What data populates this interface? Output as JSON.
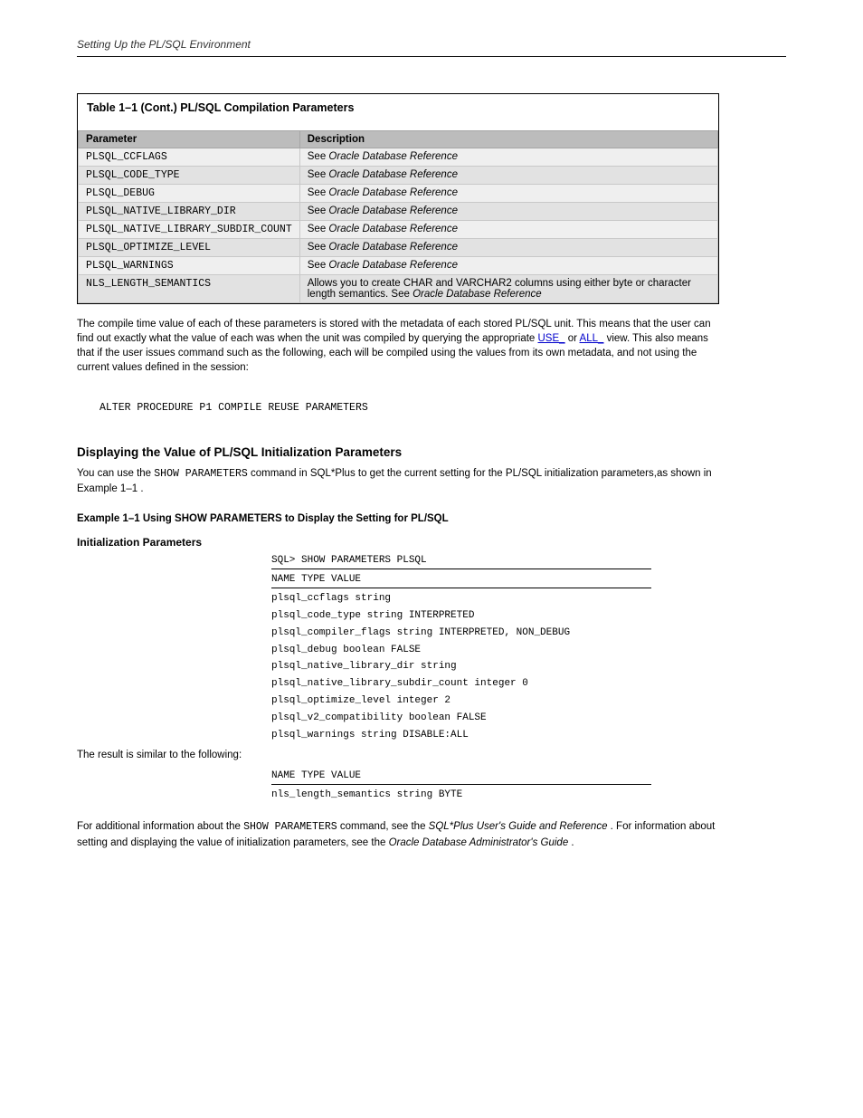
{
  "header": {
    "text": "Setting Up the PL/SQL Environment"
  },
  "table": {
    "title": "Table 1–1 (Cont.) PL/SQL Compilation Parameters",
    "header": {
      "c1": "Parameter",
      "c2": "Description"
    },
    "colors": {
      "header_bg": "#bcbcbc",
      "row_light": "#efefef",
      "row_dark": "#e2e2e2",
      "border": "#000000"
    },
    "col_widths": {
      "name": 213
    },
    "rows": [
      {
        "name": "PLSQL_CCFLAGS",
        "ref": "Oracle Database Reference",
        "shade": "lighter"
      },
      {
        "name": "PLSQL_CODE_TYPE",
        "ref": "Oracle Database Reference",
        "shade": "darker"
      },
      {
        "name": "PLSQL_DEBUG",
        "ref": "Oracle Database Reference",
        "shade": "lighter"
      },
      {
        "name": "PLSQL_NATIVE_LIBRARY_DIR",
        "ref": "Oracle Database Reference",
        "shade": "darker"
      },
      {
        "name": "PLSQL_NATIVE_LIBRARY_SUBDIR_COUNT",
        "ref": "Oracle Database Reference",
        "shade": "lighter",
        "section_break": true
      },
      {
        "name": "PLSQL_OPTIMIZE_LEVEL",
        "ref": "Oracle Database Reference",
        "shade": "darker"
      },
      {
        "name": "PLSQL_WARNINGS",
        "ref": "Oracle Database Reference",
        "shade": "lighter"
      },
      {
        "name": "NLS_LENGTH_SEMANTICS",
        "desc": "Allows you to create CHAR and VARCHAR2 columns using either byte or character length semantics. See ",
        "ref": "Oracle Database Reference",
        "shade": "darker"
      }
    ]
  },
  "note": {
    "prefix": "The compile time value of each of these parameters is stored with the metadata of each stored PL/SQL unit. This means that the user can find out exactly what the value of each was when the unit was compiled by querying the appropriate ",
    "link1_text": "USE_",
    "mid1": " or ",
    "link2_text": "ALL_",
    "suffix": " view. This also means that if the user issues command such as the following, each will be compiled using the values from its own metadata, and not using the current values defined in the session:"
  },
  "cmd_text": "ALTER PROCEDURE P1 COMPILE REUSE PARAMETERS",
  "section": {
    "heading": "Displaying the Value of PL/SQL Initialization Parameters",
    "subheading": "Initialization Parameters",
    "p1_prefix": "You can use the ",
    "p1_code": "SHOW PARAMETERS",
    "p1_mid": " command in SQL*Plus to get the current setting for the PL/SQL initialization parameters,as shown in ",
    "p1_example_ref": "Example 1–1",
    "p1_suffix": ".",
    "example_label": "Example 1–1 Using SHOW PARAMETERS to Display the Setting for PL/SQL",
    "code_lines": [
      {
        "text": "SQL> SHOW PARAMETERS PLSQL",
        "underline": true
      },
      {
        "text": "NAME                                 TYPE        VALUE",
        "underline": true
      },
      {
        "text": "plsql_ccflags                        string",
        "underline": false
      },
      {
        "text": "plsql_code_type                      string      INTERPRETED",
        "underline": false
      },
      {
        "text": "plsql_compiler_flags                 string      INTERPRETED, NON_DEBUG",
        "underline": false
      },
      {
        "text": "plsql_debug                          boolean     FALSE",
        "underline": false
      },
      {
        "text": "plsql_native_library_dir             string",
        "underline": false
      },
      {
        "text": "plsql_native_library_subdir_count    integer     0",
        "underline": false
      },
      {
        "text": "plsql_optimize_level                 integer     2",
        "underline": false
      },
      {
        "text": "plsql_v2_compatibility               boolean     FALSE",
        "underline": false
      },
      {
        "text": "plsql_warnings                       string      DISABLE:ALL",
        "underline": false
      }
    ],
    "result_label": "The result is similar to the following:",
    "result_lines": [
      {
        "text": "NAME                                 TYPE        VALUE",
        "underline": true
      },
      {
        "text": "nls_length_semantics                 string      BYTE",
        "underline": false
      }
    ],
    "post_result_prefix": "For additional information about the ",
    "post_result_code": "SHOW PARAMETERS",
    "post_result_mid": " command, see the ",
    "post_result_ref": "SQL*Plus User's Guide and Reference",
    "post_result_end": ". For information about setting and displaying the value of initialization parameters, see the ",
    "post_result_ref2": "Oracle Database Administrator's Guide",
    "post_result_period": "."
  },
  "see_text": "See "
}
